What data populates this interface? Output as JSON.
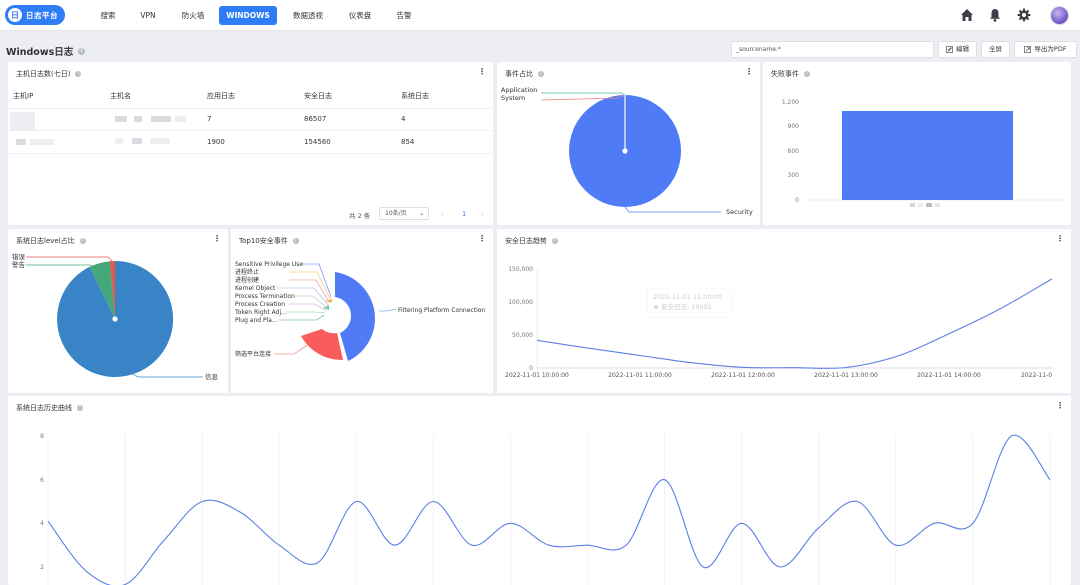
{
  "app": {
    "logo_letter": "日",
    "title": "日志平台"
  },
  "nav": {
    "items": [
      {
        "label": "搜索"
      },
      {
        "label": "VPN"
      },
      {
        "label": "防火墙"
      },
      {
        "label": "WINDOWS",
        "active": true
      },
      {
        "label": "数据透视"
      },
      {
        "label": "仪表盘"
      },
      {
        "label": "告警"
      }
    ],
    "icons": [
      "home-icon",
      "bell-icon",
      "gear-icon",
      "avatar"
    ]
  },
  "page": {
    "title": "Windows日志",
    "search_value": "_sourcename:*",
    "buttons": {
      "edit": "编辑",
      "fullscreen": "全屏",
      "export_pdf": "导出为PDF"
    }
  },
  "host_table": {
    "title": "主机日志数(七日)",
    "columns": [
      "主机IP",
      "主机名",
      "应用日志",
      "安全日志",
      "系统日志"
    ],
    "rows": [
      {
        "app": "7",
        "security": "86507",
        "system": "4"
      },
      {
        "app": "1900",
        "security": "154560",
        "system": "854"
      }
    ],
    "total": "共 2 条",
    "page_size": "10条/页",
    "current_page": "1"
  },
  "event_share": {
    "title": "事件占比",
    "labels": {
      "application": "Application",
      "system": "System",
      "security": "Security"
    }
  },
  "failed_events": {
    "title": "失败事件",
    "y_ticks": [
      "1,200",
      "900",
      "600",
      "300",
      "0"
    ]
  },
  "system_level": {
    "title": "系统日志level占比",
    "labels": {
      "error": "错误",
      "warning": "警告",
      "info": "信息"
    }
  },
  "top10": {
    "title": "Top10安全事件",
    "labels": [
      "Sensitive Privilege Use",
      "进程终止",
      "进程创建",
      "Kernel Object",
      "Process Termination",
      "Process Creation",
      "Token Right Adj...",
      "Plug and Pla..."
    ],
    "label_filtering": "Filtering Platform Connection",
    "label_screen": "筛选平台连接"
  },
  "security_trend": {
    "title": "安全日志趋势",
    "y_ticks": [
      "150,000",
      "100,000",
      "50,000",
      "0"
    ],
    "x_ticks": [
      "2022-11-01 10:00:00",
      "2022-11-01 11:00:00",
      "2022-11-01 12:00:00",
      "2022-11-01 13:00:00",
      "2022-11-01 14:00:00",
      "2022-11-0"
    ],
    "tooltip_time": "2022-11-01 11:00:00",
    "tooltip_value": "安全日志: 19001",
    "color": "#5b7fe6"
  },
  "system_history": {
    "title": "系统日志历史曲线",
    "y_ticks": [
      "8",
      "6",
      "4",
      "2"
    ],
    "color": "#5b7fe6"
  },
  "colors": {
    "primary": "#2e7cf6",
    "security_blue": "#4f7bf7",
    "info_blue": "#3984c6",
    "warning_green": "#46a77a",
    "error_red": "#e05b4b",
    "screen_red": "#f85c5c"
  },
  "chart_data": [
    {
      "type": "pie",
      "title": "事件占比",
      "categories": [
        "Security",
        "Application",
        "System"
      ],
      "values": [
        99.6,
        0.2,
        0.2
      ]
    },
    {
      "type": "bar",
      "title": "失败事件",
      "values": [
        1090
      ],
      "ylim": [
        0,
        1200
      ]
    },
    {
      "type": "pie",
      "title": "系统日志level占比",
      "categories": [
        "信息",
        "警告",
        "错误"
      ],
      "values": [
        92,
        6,
        2
      ]
    },
    {
      "type": "pie",
      "title": "Top10安全事件",
      "categories": [
        "Filtering Platform Connection",
        "筛选平台连接",
        "Sensitive Privilege Use",
        "进程终止",
        "进程创建",
        "Kernel Object",
        "Process Termination",
        "Process Creation",
        "Token Right Adj...",
        "Plug and Pla..."
      ],
      "values": [
        58,
        38,
        0.8,
        0.6,
        0.6,
        0.5,
        0.5,
        0.4,
        0.3,
        0.3
      ]
    },
    {
      "type": "line",
      "title": "安全日志趋势",
      "x": [
        "2022-11-01 10:00:00",
        "2022-11-01 10:30:00",
        "2022-11-01 11:00:00",
        "2022-11-01 11:30:00",
        "2022-11-01 12:00:00",
        "2022-11-01 12:30:00",
        "2022-11-01 13:00:00",
        "2022-11-01 13:30:00",
        "2022-11-01 14:00:00",
        "2022-11-01 14:30:00",
        "2022-11-01 15:00:00"
      ],
      "series": [
        {
          "name": "安全日志",
          "values": [
            42000,
            30000,
            19001,
            8000,
            1000,
            500,
            800,
            18000,
            52000,
            90000,
            135000
          ]
        }
      ],
      "ylim": [
        0,
        150000
      ]
    },
    {
      "type": "line",
      "title": "系统日志历史曲线",
      "values": [
        4.1,
        1.8,
        1.2,
        3.2,
        5.0,
        4.5,
        3.0,
        2.2,
        5.0,
        3.0,
        5.0,
        3.0,
        4.0,
        3.0,
        3.0,
        3.0,
        6.0,
        2.0,
        4.0,
        2.0,
        3.8,
        5.0,
        3.0,
        4.0,
        4.0,
        8.0,
        6.0
      ],
      "ylim": [
        2,
        8
      ]
    }
  ]
}
